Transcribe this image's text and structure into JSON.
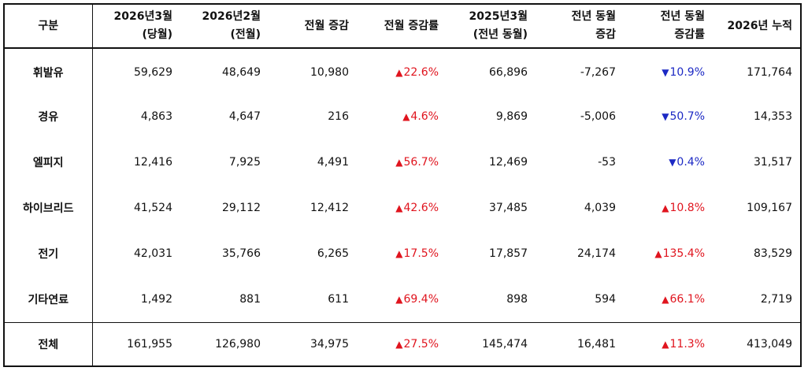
{
  "table": {
    "headers": [
      [
        "구분"
      ],
      [
        "2026년3월",
        "(당월)"
      ],
      [
        "2026년2월",
        "(전월)"
      ],
      [
        "전월 증감"
      ],
      [
        "전월 증감률"
      ],
      [
        "2025년3월",
        "(전년 동월)"
      ],
      [
        "전년 동월",
        "증감"
      ],
      [
        "전년 동월",
        "증감률"
      ],
      [
        "2026년 누적"
      ]
    ],
    "rows": [
      {
        "name": "휘발유",
        "cur": "59,629",
        "prev": "48,649",
        "mom_diff": "10,980",
        "mom_rate": "22.6%",
        "mom_dir": "up",
        "ly": "66,896",
        "yoy_diff": "-7,267",
        "yoy_rate": "10.9%",
        "yoy_dir": "down",
        "ytd": "171,764"
      },
      {
        "name": "경유",
        "cur": "4,863",
        "prev": "4,647",
        "mom_diff": "216",
        "mom_rate": "4.6%",
        "mom_dir": "up",
        "ly": "9,869",
        "yoy_diff": "-5,006",
        "yoy_rate": "50.7%",
        "yoy_dir": "down",
        "ytd": "14,353"
      },
      {
        "name": "엘피지",
        "cur": "12,416",
        "prev": "7,925",
        "mom_diff": "4,491",
        "mom_rate": "56.7%",
        "mom_dir": "up",
        "ly": "12,469",
        "yoy_diff": "-53",
        "yoy_rate": "0.4%",
        "yoy_dir": "down",
        "ytd": "31,517"
      },
      {
        "name": "하이브리드",
        "cur": "41,524",
        "prev": "29,112",
        "mom_diff": "12,412",
        "mom_rate": "42.6%",
        "mom_dir": "up",
        "ly": "37,485",
        "yoy_diff": "4,039",
        "yoy_rate": "10.8%",
        "yoy_dir": "up",
        "ytd": "109,167"
      },
      {
        "name": "전기",
        "cur": "42,031",
        "prev": "35,766",
        "mom_diff": "6,265",
        "mom_rate": "17.5%",
        "mom_dir": "up",
        "ly": "17,857",
        "yoy_diff": "24,174",
        "yoy_rate": "135.4%",
        "yoy_dir": "up",
        "ytd": "83,529"
      },
      {
        "name": "기타연료",
        "cur": "1,492",
        "prev": "881",
        "mom_diff": "611",
        "mom_rate": "69.4%",
        "mom_dir": "up",
        "ly": "898",
        "yoy_diff": "594",
        "yoy_rate": "66.1%",
        "yoy_dir": "up",
        "ytd": "2,719"
      }
    ],
    "total": {
      "name": "전체",
      "cur": "161,955",
      "prev": "126,980",
      "mom_diff": "34,975",
      "mom_rate": "27.5%",
      "mom_dir": "up",
      "ly": "145,474",
      "yoy_diff": "16,481",
      "yoy_rate": "11.3%",
      "yoy_dir": "up",
      "ytd": "413,049"
    },
    "arrows": {
      "up": "▲",
      "down": "▼"
    },
    "colors": {
      "up": "#e0141e",
      "down": "#1c29c4"
    }
  }
}
